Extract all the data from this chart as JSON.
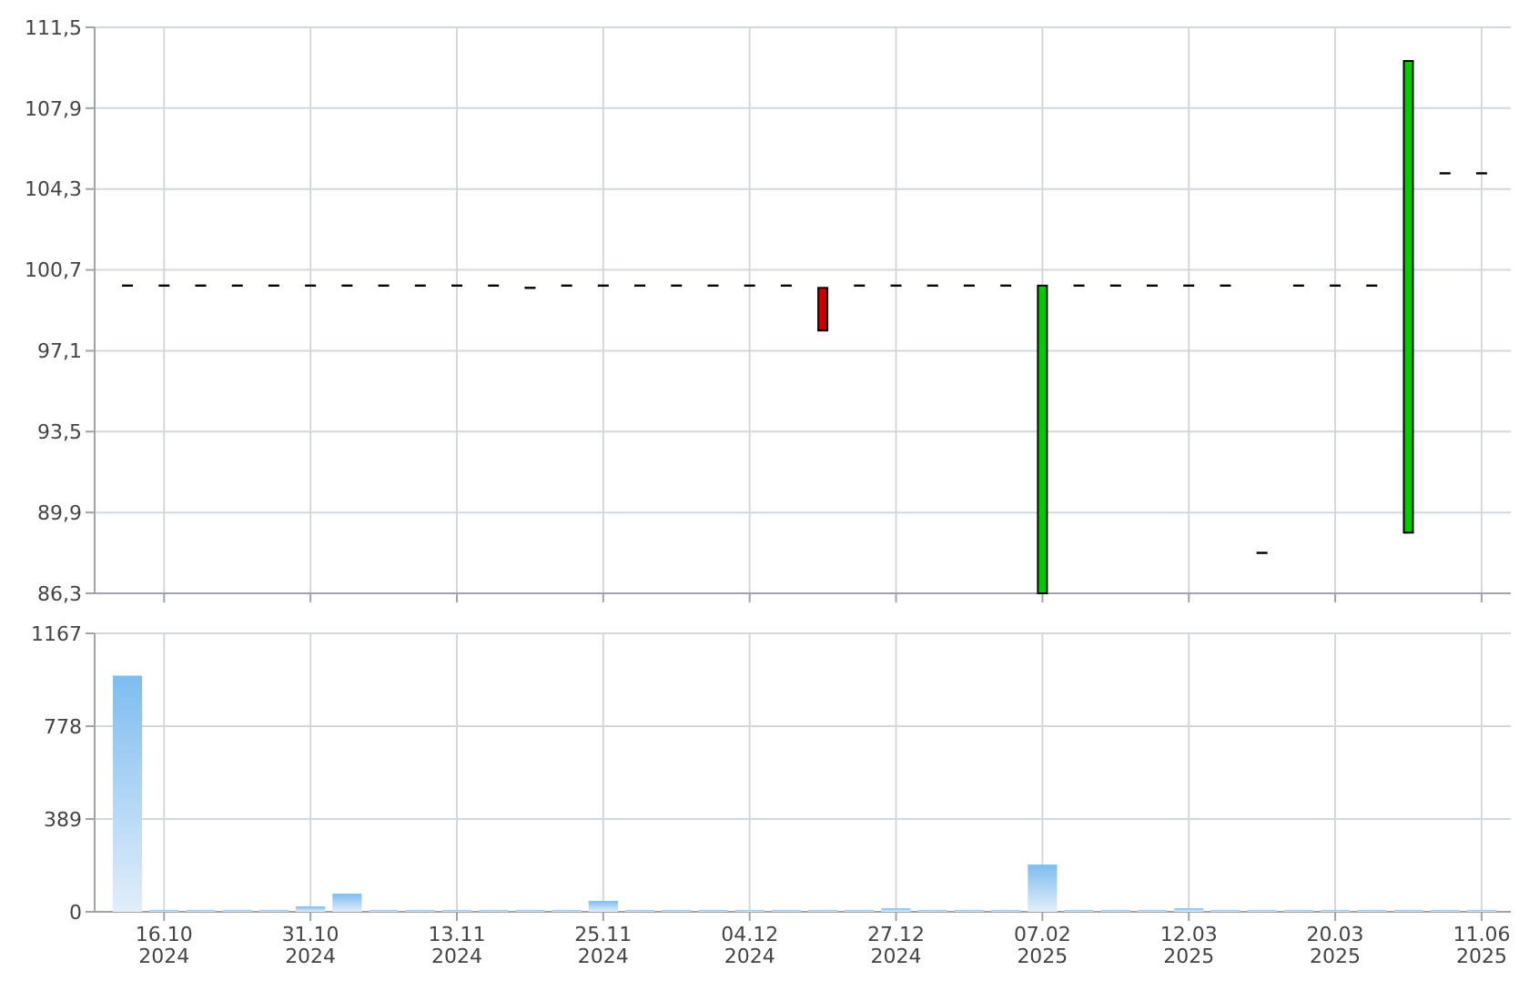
{
  "chart_data": [
    {
      "type": "candlestick",
      "categories": [
        null,
        null,
        null,
        null,
        null,
        null,
        null,
        null,
        null,
        null,
        null,
        null,
        null,
        null,
        null,
        null,
        null,
        null,
        null,
        null,
        null,
        null,
        null,
        null,
        null,
        null,
        null,
        null,
        null,
        null,
        null,
        null,
        null,
        null,
        null,
        null,
        null,
        null
      ],
      "ohlc": [
        [
          100,
          100,
          100,
          100
        ],
        [
          100,
          100,
          100,
          100
        ],
        [
          100,
          100,
          100,
          100
        ],
        [
          100,
          100,
          100,
          100
        ],
        [
          100,
          100,
          100,
          100
        ],
        [
          100,
          100,
          100,
          100
        ],
        [
          100,
          100,
          100,
          100
        ],
        [
          100,
          100,
          100,
          100
        ],
        [
          100,
          100,
          100,
          100
        ],
        [
          100,
          100,
          100,
          100
        ],
        [
          100,
          100,
          100,
          100
        ],
        [
          99.9,
          99.9,
          99.9,
          99.9
        ],
        [
          100,
          100,
          100,
          100
        ],
        [
          100,
          100,
          100,
          100
        ],
        [
          100,
          100,
          100,
          100
        ],
        [
          100,
          100,
          100,
          100
        ],
        [
          100,
          100,
          100,
          100
        ],
        [
          100,
          100,
          100,
          100
        ],
        [
          100,
          100,
          100,
          100
        ],
        [
          99.9,
          99.9,
          98.0,
          98.0
        ],
        [
          100,
          100,
          100,
          100
        ],
        [
          100,
          100,
          100,
          100
        ],
        [
          100,
          100,
          100,
          100
        ],
        [
          100,
          100,
          100,
          100
        ],
        [
          100,
          100,
          100,
          100
        ],
        [
          86.3,
          100,
          86.3,
          100
        ],
        [
          100,
          100,
          100,
          100
        ],
        [
          100,
          100,
          100,
          100
        ],
        [
          100,
          100,
          100,
          100
        ],
        [
          100,
          100,
          100,
          100
        ],
        [
          100,
          100,
          100,
          100
        ],
        [
          88.1,
          88.1,
          88.1,
          88.1
        ],
        [
          100,
          100,
          100,
          100
        ],
        [
          100,
          100,
          100,
          100
        ],
        [
          100,
          100,
          100,
          100
        ],
        [
          89.0,
          110.0,
          89.0,
          110.0
        ],
        [
          105,
          105,
          105,
          105
        ],
        [
          105,
          105,
          105,
          105
        ]
      ],
      "colors": [
        "#000000",
        "#000000",
        "#000000",
        "#000000",
        "#000000",
        "#000000",
        "#000000",
        "#000000",
        "#000000",
        "#000000",
        "#000000",
        "#000000",
        "#000000",
        "#000000",
        "#000000",
        "#000000",
        "#000000",
        "#000000",
        "#000000",
        "#cc0000",
        "#000000",
        "#000000",
        "#000000",
        "#000000",
        "#000000",
        "#00cc00",
        "#000000",
        "#000000",
        "#000000",
        "#000000",
        "#000000",
        "#000000",
        "#000000",
        "#000000",
        "#000000",
        "#00cc00",
        "#000000",
        "#000000"
      ],
      "ylim": [
        86.3,
        111.5
      ],
      "yticks": [
        {
          "value": 86.3,
          "label": "86,3"
        },
        {
          "value": 89.9,
          "label": "89,9"
        },
        {
          "value": 93.5,
          "label": "93,5"
        },
        {
          "value": 97.1,
          "label": "97,1"
        },
        {
          "value": 100.7,
          "label": "100,7"
        },
        {
          "value": 104.3,
          "label": "104,3"
        },
        {
          "value": 107.9,
          "label": "107,9"
        },
        {
          "value": 111.5,
          "label": "111,5"
        }
      ],
      "grid": true,
      "tick_labels": "y"
    },
    {
      "type": "bar",
      "categories": [
        null,
        "16.10\n2024",
        null,
        null,
        null,
        "31.10\n2024",
        null,
        null,
        null,
        "13.11\n2024",
        null,
        null,
        null,
        "25.11\n2024",
        null,
        null,
        null,
        "04.12\n2024",
        null,
        null,
        null,
        "27.12\n2024",
        null,
        null,
        null,
        "07.02\n2025",
        null,
        null,
        null,
        "12.03\n2025",
        null,
        null,
        null,
        "20.03\n2025",
        null,
        null,
        null,
        "11.06\n2025"
      ],
      "values": [
        990,
        8,
        8,
        8,
        8,
        23,
        76,
        8,
        8,
        8,
        8,
        8,
        8,
        46,
        8,
        8,
        8,
        8,
        8,
        8,
        8,
        15,
        8,
        8,
        8,
        198,
        8,
        8,
        8,
        15,
        8,
        8,
        8,
        8,
        8,
        8,
        8,
        8
      ],
      "color": "#7dbdf0",
      "ylim": [
        0,
        1167
      ],
      "yticks": [
        0,
        389,
        778,
        1167
      ],
      "grid": true
    }
  ]
}
